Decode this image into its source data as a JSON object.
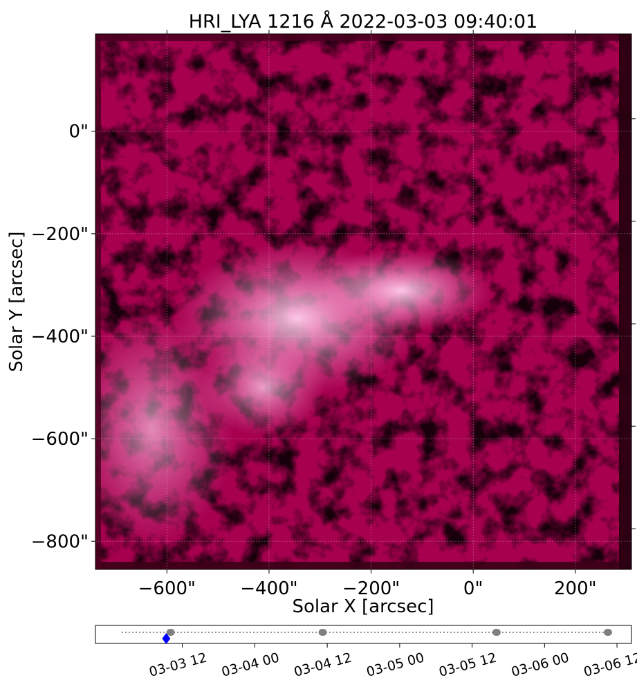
{
  "title": "HRI_LYA 1216 Å 2022-03-03 09:40:01",
  "image_axes": {
    "xlabel": "Solar X [arcsec]",
    "ylabel": "Solar Y [arcsec]",
    "xticks": [
      {
        "value": -600,
        "label": "−600\""
      },
      {
        "value": -400,
        "label": "−400\""
      },
      {
        "value": -200,
        "label": "−200\""
      },
      {
        "value": 0,
        "label": "0\""
      },
      {
        "value": 200,
        "label": "200\""
      }
    ],
    "yticks": [
      {
        "value": 0,
        "label": "0\""
      },
      {
        "value": -200,
        "label": "−200\""
      },
      {
        "value": -400,
        "label": "−400\""
      },
      {
        "value": -600,
        "label": "−600\""
      },
      {
        "value": -800,
        "label": "−800\""
      }
    ],
    "xlim": [
      -740,
      310
    ],
    "ylim": [
      -855,
      190
    ],
    "colormap": [
      "#3b0016",
      "#8e0043",
      "#c4136b",
      "#e44d99",
      "#ffc3e6"
    ],
    "grid": true
  },
  "timeline": {
    "ticks": [
      {
        "t": 0.5,
        "label": "03-03 12"
      },
      {
        "t": 1.0,
        "label": "03-04 00"
      },
      {
        "t": 1.5,
        "label": "03-04 12"
      },
      {
        "t": 2.0,
        "label": "03-05 00"
      },
      {
        "t": 2.5,
        "label": "03-05 12"
      },
      {
        "t": 3.0,
        "label": "03-06 00"
      },
      {
        "t": 3.5,
        "label": "03-06 12"
      }
    ],
    "tlim": [
      -0.1,
      3.6
    ],
    "observation_clusters": [
      {
        "start": 0.39,
        "end": 0.42
      },
      {
        "start": 1.44,
        "end": 1.47
      },
      {
        "start": 2.64,
        "end": 2.67
      },
      {
        "start": 3.71,
        "end": 3.74
      }
    ],
    "current_time": 0.403,
    "colors": {
      "observed": "#808080",
      "current": "#0000ff",
      "line": "#808080"
    }
  }
}
